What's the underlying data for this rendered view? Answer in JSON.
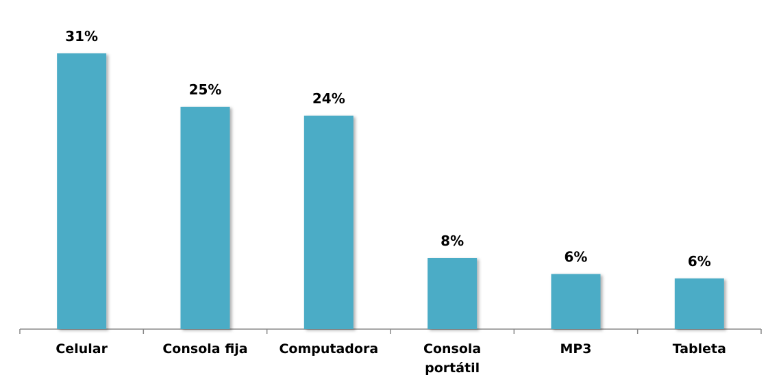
{
  "chart_data": {
    "type": "bar",
    "categories": [
      "Celular",
      "Consola fija",
      "Computadora",
      "Consola\nportátil",
      "MP3",
      "Tableta"
    ],
    "values": [
      31,
      25,
      24,
      8,
      6.2,
      5.7
    ],
    "value_labels": [
      "31%",
      "25%",
      "24%",
      "8%",
      "6%",
      "6%"
    ],
    "color": "#4bacc6",
    "ylim": [
      0,
      35
    ]
  }
}
